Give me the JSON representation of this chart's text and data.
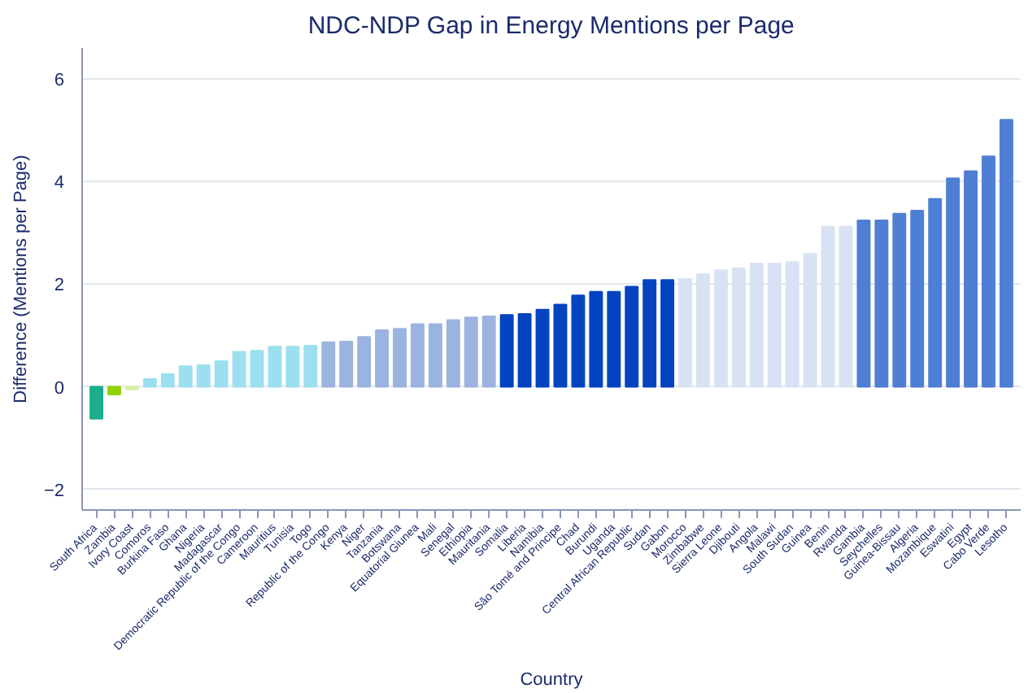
{
  "chart_data": {
    "type": "bar",
    "title": "NDC-NDP Gap in Energy Mentions per Page",
    "xlabel": "Country",
    "ylabel": "Difference (Mentions per Page)",
    "categories": [
      "South Africa",
      "Zambia",
      "Ivory Coast",
      "Comoros",
      "Burkina Faso",
      "Ghana",
      "Nigeria",
      "Madagascar",
      "Democratic Republic of the Congo",
      "Cameroon",
      "Mauritius",
      "Tunisia",
      "Togo",
      "Republic of the Congo",
      "Kenya",
      "Niger",
      "Tanzania",
      "Botswana",
      "Equatorial Giunea",
      "Mali",
      "Senegal",
      "Ethiopia",
      "Mauritania",
      "Somalia",
      "Liberia",
      "Namibia",
      "São Tomé and Principe",
      "Chad",
      "Burundi",
      "Uganda",
      "Central African Republic",
      "Sudan",
      "Gabon",
      "Morocco",
      "Zimbabwe",
      "Sierra Leone",
      "Djibouti",
      "Angola",
      "Malawi",
      "South Sudan",
      "Guinea",
      "Benin",
      "Rwanda",
      "Gambia",
      "Seychelles",
      "Guinea-Bissau",
      "Algeria",
      "Mozambique",
      "Eswatini",
      "Egypt",
      "Cabo Verde",
      "Lesotho"
    ],
    "values": [
      -0.62,
      -0.15,
      -0.05,
      0.15,
      0.25,
      0.4,
      0.42,
      0.5,
      0.68,
      0.7,
      0.78,
      0.78,
      0.8,
      0.87,
      0.88,
      0.97,
      1.1,
      1.13,
      1.22,
      1.22,
      1.3,
      1.35,
      1.37,
      1.4,
      1.42,
      1.5,
      1.6,
      1.78,
      1.85,
      1.85,
      1.95,
      2.08,
      2.08,
      2.1,
      2.19,
      2.27,
      2.31,
      2.4,
      2.4,
      2.43,
      2.59,
      3.12,
      3.12,
      3.24,
      3.24,
      3.37,
      3.43,
      3.66,
      4.06,
      4.2,
      4.49,
      5.2
    ],
    "colors": [
      "#1aae8c",
      "#8fd400",
      "#d6ef9e",
      "#9ce0f0",
      "#9ce0f0",
      "#9ce0f0",
      "#9ce0f0",
      "#9ce0f0",
      "#9ce0f0",
      "#9ce0f0",
      "#9ce0f0",
      "#9ce0f0",
      "#9ce0f0",
      "#9bb3e0",
      "#9bb3e0",
      "#9bb3e0",
      "#9bb3e0",
      "#9bb3e0",
      "#9bb3e0",
      "#9bb3e0",
      "#9bb3e0",
      "#9bb3e0",
      "#9bb3e0",
      "#0343c0",
      "#0343c0",
      "#0343c0",
      "#0343c0",
      "#0343c0",
      "#0343c0",
      "#0343c0",
      "#0343c0",
      "#0343c0",
      "#0343c0",
      "#d8e2f4",
      "#d8e2f4",
      "#d8e2f4",
      "#d8e2f4",
      "#d8e2f4",
      "#d8e2f4",
      "#d8e2f4",
      "#d8e2f4",
      "#d8e2f4",
      "#d8e2f4",
      "#4f7fd4",
      "#4f7fd4",
      "#4f7fd4",
      "#4f7fd4",
      "#4f7fd4",
      "#4f7fd4",
      "#4f7fd4",
      "#4f7fd4",
      "#4f7fd4"
    ],
    "ylim": [
      -2.4,
      6.6
    ],
    "yticks": [
      -2,
      0,
      2,
      4,
      6
    ],
    "grid": "y"
  }
}
